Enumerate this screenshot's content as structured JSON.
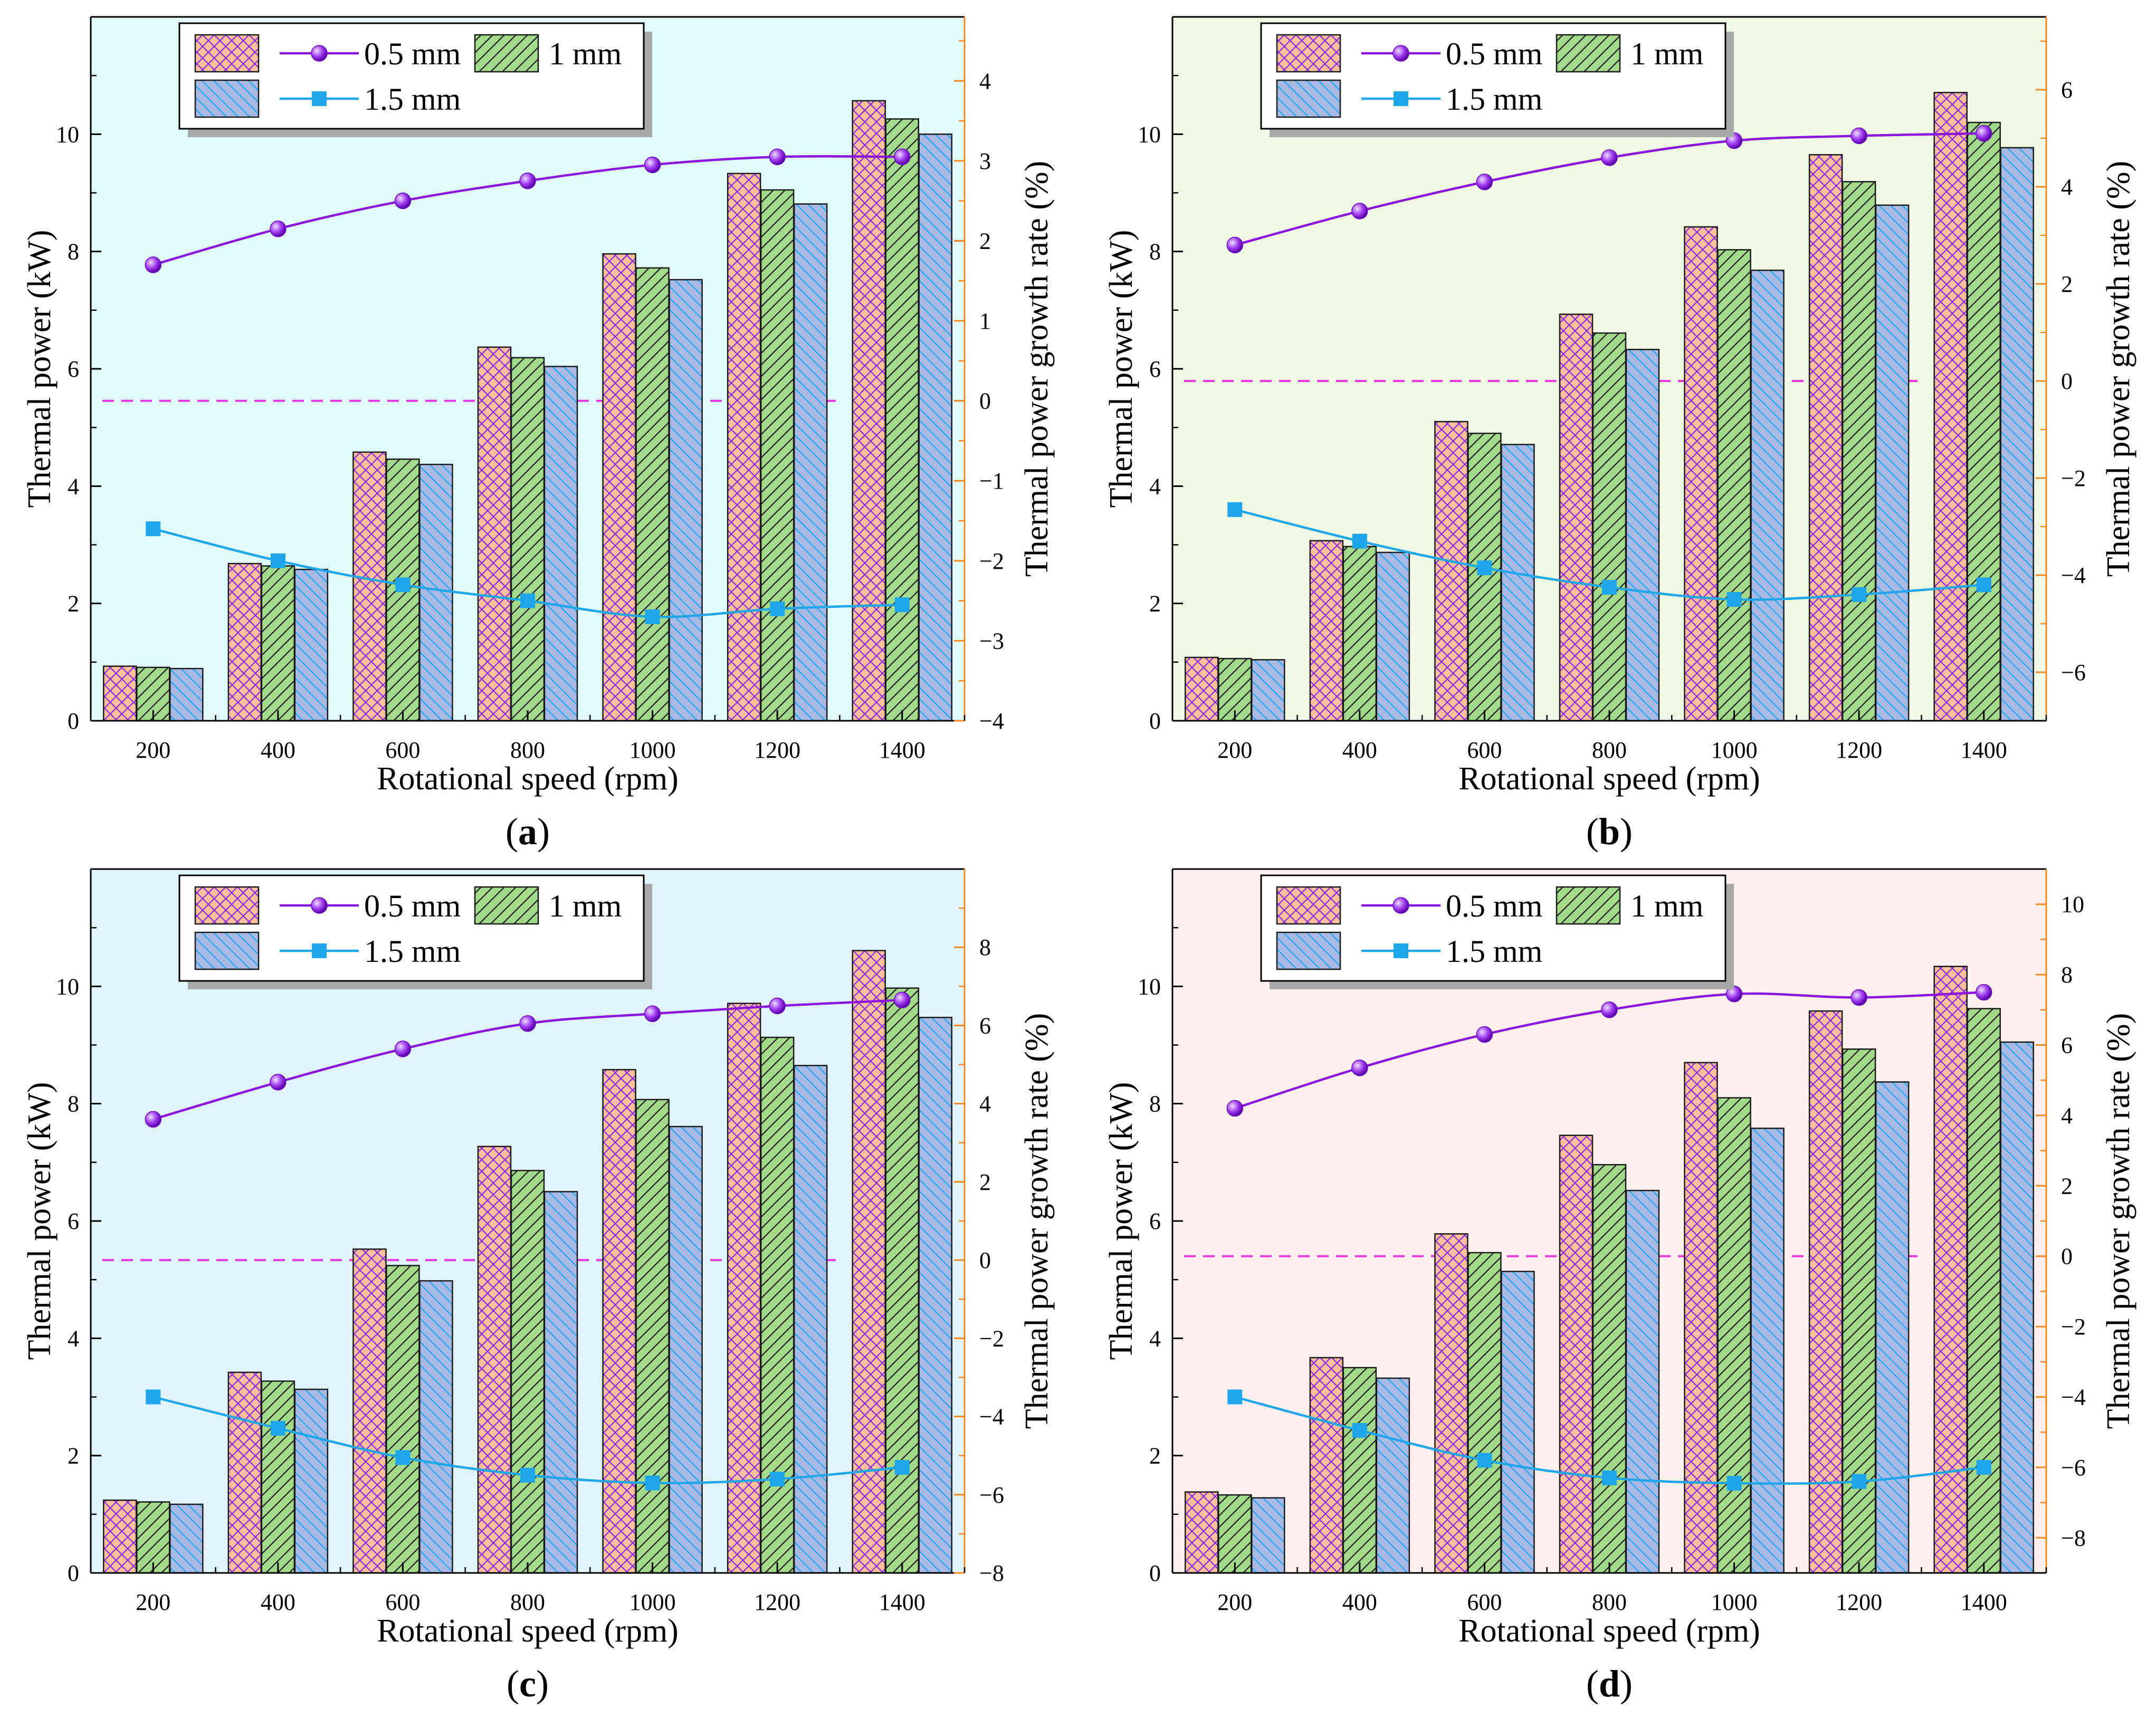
{
  "colors": {
    "bar_fills": [
      "#fbbf9c",
      "#a3d98b",
      "#a9b9e6"
    ],
    "bar_hatches": [
      "#8a2be2",
      "#1a1a1a",
      "#1ea6ec"
    ],
    "line_05": "#8b16e0",
    "line_15": "#1ea6ec",
    "zero_line": "#e838e0",
    "right_axis": "#f5891f",
    "panel_backgrounds": [
      "#e1fbfd",
      "#f0f8e6",
      "#e1f3fb",
      "#fdf0ee"
    ]
  },
  "chart_data": [
    {
      "type": "bar+line",
      "caption_letter": "a",
      "xlabel": "Rotational speed (rpm)",
      "ylabel": "Thermal power (kW)",
      "y2label": "Thermal power growth rate (%)",
      "categories": [
        "200",
        "400",
        "600",
        "800",
        "1000",
        "1200",
        "1400"
      ],
      "ylim": [
        0,
        12
      ],
      "y_ticks": [
        0,
        2,
        4,
        6,
        8,
        10
      ],
      "y2lim": [
        -4,
        4.8
      ],
      "y2_ticks": [
        -4,
        -3,
        -2,
        -1,
        0,
        1,
        2,
        3,
        4
      ],
      "y2_tick_labels": [
        "−4",
        "−3",
        "−2",
        "−1",
        "0",
        "1",
        "2",
        "3",
        "4"
      ],
      "series": [
        {
          "name": "0.5 mm",
          "kind": "bar",
          "values": [
            0.93,
            2.68,
            4.58,
            6.37,
            7.96,
            9.33,
            10.57
          ]
        },
        {
          "name": "1 mm",
          "kind": "bar",
          "values": [
            0.91,
            2.64,
            4.46,
            6.19,
            7.72,
            9.05,
            10.26
          ]
        },
        {
          "name": "1.5 mm",
          "kind": "bar",
          "values": [
            0.89,
            2.58,
            4.37,
            6.04,
            7.52,
            8.81,
            10.0
          ]
        },
        {
          "name": "0.5 mm",
          "kind": "line",
          "axis": "right",
          "values": [
            1.7,
            2.15,
            2.5,
            2.75,
            2.95,
            3.05,
            3.05
          ]
        },
        {
          "name": "1.5 mm",
          "kind": "line",
          "axis": "right",
          "values": [
            -1.6,
            -2.0,
            -2.3,
            -2.5,
            -2.7,
            -2.6,
            -2.55
          ]
        }
      ],
      "legend": [
        "0.5 mm",
        "1 mm",
        "1.5 mm"
      ]
    },
    {
      "type": "bar+line",
      "caption_letter": "b",
      "xlabel": "Rotational speed (rpm)",
      "ylabel": "Thermal power (kW)",
      "y2label": "Thermal power growth rate (%)",
      "categories": [
        "200",
        "400",
        "600",
        "800",
        "1000",
        "1200",
        "1400"
      ],
      "ylim": [
        0,
        12
      ],
      "y_ticks": [
        0,
        2,
        4,
        6,
        8,
        10
      ],
      "y2lim": [
        -7,
        7.5
      ],
      "y2_ticks": [
        -6,
        -4,
        -2,
        0,
        2,
        4,
        6
      ],
      "y2_tick_labels": [
        "−6",
        "−4",
        "−2",
        "0",
        "2",
        "4",
        "6"
      ],
      "series": [
        {
          "name": "0.5 mm",
          "kind": "bar",
          "values": [
            1.08,
            3.07,
            5.1,
            6.93,
            8.42,
            9.65,
            10.71
          ]
        },
        {
          "name": "1 mm",
          "kind": "bar",
          "values": [
            1.06,
            2.97,
            4.9,
            6.61,
            8.03,
            9.19,
            10.2
          ]
        },
        {
          "name": "1.5 mm",
          "kind": "bar",
          "values": [
            1.04,
            2.87,
            4.71,
            6.33,
            7.68,
            8.79,
            9.77
          ]
        },
        {
          "name": "0.5 mm",
          "kind": "line",
          "axis": "right",
          "values": [
            2.8,
            3.5,
            4.1,
            4.6,
            4.95,
            5.05,
            5.1
          ]
        },
        {
          "name": "1.5 mm",
          "kind": "line",
          "axis": "right",
          "values": [
            -2.65,
            -3.3,
            -3.85,
            -4.25,
            -4.5,
            -4.4,
            -4.2
          ]
        }
      ],
      "legend": [
        "0.5 mm",
        "1 mm",
        "1.5 mm"
      ]
    },
    {
      "type": "bar+line",
      "caption_letter": "c",
      "xlabel": "Rotational speed (rpm)",
      "ylabel": "Thermal power (kW)",
      "y2label": "Thermal power growth rate (%)",
      "categories": [
        "200",
        "400",
        "600",
        "800",
        "1000",
        "1200",
        "1400"
      ],
      "ylim": [
        0,
        12
      ],
      "y_ticks": [
        0,
        2,
        4,
        6,
        8,
        10
      ],
      "y2lim": [
        -8,
        10
      ],
      "y2_ticks": [
        -8,
        -6,
        -4,
        -2,
        0,
        2,
        4,
        6,
        8
      ],
      "y2_tick_labels": [
        "−8",
        "−6",
        "−4",
        "−2",
        "0",
        "2",
        "4",
        "6",
        "8"
      ],
      "series": [
        {
          "name": "0.5 mm",
          "kind": "bar",
          "values": [
            1.24,
            3.42,
            5.52,
            7.27,
            8.58,
            9.71,
            10.61
          ]
        },
        {
          "name": "1 mm",
          "kind": "bar",
          "values": [
            1.21,
            3.27,
            5.24,
            6.86,
            8.07,
            9.13,
            9.97
          ]
        },
        {
          "name": "1.5 mm",
          "kind": "bar",
          "values": [
            1.17,
            3.13,
            4.98,
            6.5,
            7.61,
            8.65,
            9.47
          ]
        },
        {
          "name": "0.5 mm",
          "kind": "line",
          "axis": "right",
          "values": [
            3.6,
            4.55,
            5.4,
            6.05,
            6.3,
            6.5,
            6.65
          ]
        },
        {
          "name": "1.5 mm",
          "kind": "line",
          "axis": "right",
          "values": [
            -3.5,
            -4.3,
            -5.05,
            -5.5,
            -5.7,
            -5.6,
            -5.3
          ]
        }
      ],
      "legend": [
        "0.5 mm",
        "1 mm",
        "1.5 mm"
      ]
    },
    {
      "type": "bar+line",
      "caption_letter": "d",
      "xlabel": "Rotational speed (rpm)",
      "ylabel": "Thermal power (kW)",
      "y2label": "Thermal power growth rate (%)",
      "categories": [
        "200",
        "400",
        "600",
        "800",
        "1000",
        "1200",
        "1400"
      ],
      "ylim": [
        0,
        12
      ],
      "y_ticks": [
        0,
        2,
        4,
        6,
        8,
        10
      ],
      "y2lim": [
        -9,
        11
      ],
      "y2_ticks": [
        -8,
        -6,
        -4,
        -2,
        0,
        2,
        4,
        6,
        8,
        10
      ],
      "y2_tick_labels": [
        "−8",
        "−6",
        "−4",
        "−2",
        "0",
        "2",
        "4",
        "6",
        "8",
        "10"
      ],
      "series": [
        {
          "name": "0.5 mm",
          "kind": "bar",
          "values": [
            1.38,
            3.67,
            5.78,
            7.46,
            8.7,
            9.58,
            10.34
          ]
        },
        {
          "name": "1 mm",
          "kind": "bar",
          "values": [
            1.33,
            3.5,
            5.46,
            6.96,
            8.1,
            8.93,
            9.62
          ]
        },
        {
          "name": "1.5 mm",
          "kind": "bar",
          "values": [
            1.28,
            3.32,
            5.14,
            6.52,
            7.58,
            8.37,
            9.05
          ]
        },
        {
          "name": "0.5 mm",
          "kind": "line",
          "axis": "right",
          "values": [
            4.2,
            5.35,
            6.3,
            7.0,
            7.45,
            7.35,
            7.5
          ]
        },
        {
          "name": "1.5 mm",
          "kind": "line",
          "axis": "right",
          "values": [
            -4.0,
            -4.95,
            -5.8,
            -6.3,
            -6.45,
            -6.4,
            -6.0
          ]
        }
      ],
      "legend": [
        "0.5 mm",
        "1 mm",
        "1.5 mm"
      ]
    }
  ]
}
